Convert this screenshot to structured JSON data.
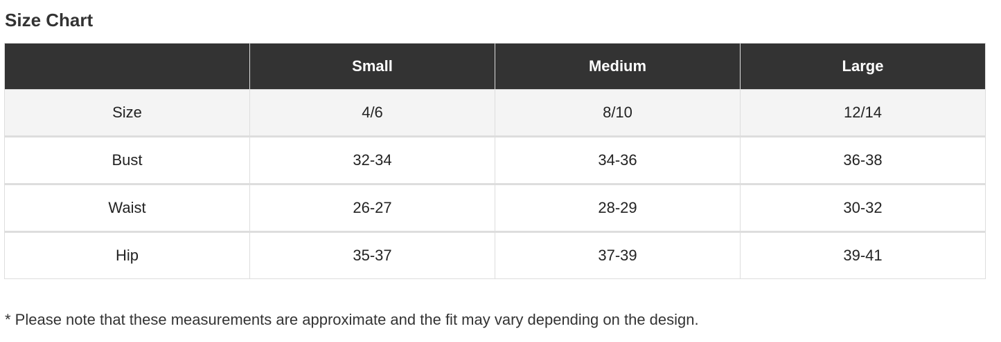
{
  "header": {
    "title": "Size Chart"
  },
  "table": {
    "columns": [
      "Small",
      "Medium",
      "Large"
    ],
    "rows": [
      [
        "Size",
        "4/6",
        "8/10",
        "12/14"
      ],
      [
        "Bust",
        "32-34",
        "34-36",
        "36-38"
      ],
      [
        "Waist",
        "26-27",
        "28-29",
        "30-32"
      ],
      [
        "Hip",
        "35-37",
        "37-39",
        "39-41"
      ]
    ]
  },
  "footer": {
    "note": "* Please note that these measurements are approximate and the fit may vary depending on the design."
  }
}
